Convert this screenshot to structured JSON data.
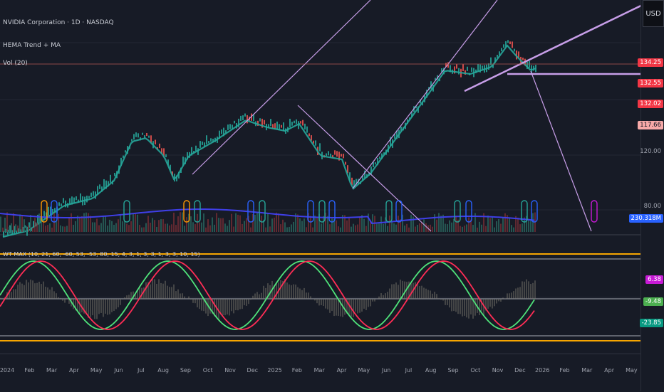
{
  "main_legend": {
    "symbol": "NVIDIA Corporation · 1D · NASDAQ",
    "indicator_1": "HEMA Trend + MA",
    "indicator_2": "Vol (20)"
  },
  "oscillator_legend": "WT MAX (10, 21, 60, -60, 53, -53, 80, 15, 4, 3, 1, 3, 3, 1, 3, 3, 10, 15)",
  "currency": "USD",
  "price_tags": [
    {
      "label": "134.25",
      "color": "#f23645"
    },
    {
      "label": "132.55",
      "color": "#f23645"
    },
    {
      "label": "132.02",
      "color": "#f23645"
    },
    {
      "label": "117.66",
      "color": "#f7a9a8",
      "text": "#131722"
    },
    {
      "label": "120.00",
      "color": "transparent"
    },
    {
      "label": "80.00",
      "color": "transparent"
    },
    {
      "label": "230.318M",
      "color": "#2962ff"
    }
  ],
  "oscillator_tags": [
    {
      "label": "6.38",
      "color": "#c71ad6"
    },
    {
      "label": "-9.48",
      "color": "#4caf50"
    },
    {
      "label": "-23.85",
      "color": "#089981"
    }
  ],
  "time_axis": [
    "2024",
    "Feb",
    "Mar",
    "Apr",
    "May",
    "Jun",
    "Jul",
    "Aug",
    "Sep",
    "Oct",
    "Nov",
    "Dec",
    "2025",
    "Feb",
    "Mar",
    "Apr",
    "May",
    "Jun",
    "Jul",
    "Aug",
    "Sep",
    "Oct",
    "Nov",
    "Dec",
    "2026",
    "Feb",
    "Mar",
    "Apr",
    "May"
  ],
  "signal_markers": [
    "S",
    "B",
    "B",
    "S",
    "B",
    "B",
    "B",
    "B",
    "B",
    "B",
    "B",
    "B",
    "B",
    "B",
    "B",
    "B",
    "B",
    "S"
  ],
  "colors": {
    "background": "#171b26",
    "bull": "#26a69a",
    "bear": "#ef5350",
    "trendline": "#c79ee8",
    "volume_ma": "#3f3fe8",
    "band": "#f7a600"
  }
}
